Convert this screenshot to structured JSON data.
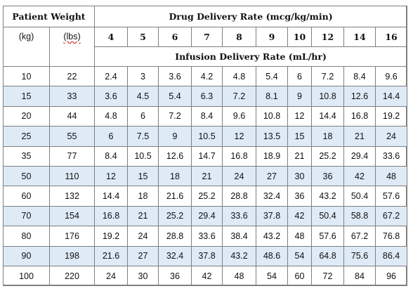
{
  "header": {
    "patient_weight": "Patient Weight",
    "drug_rate": "Drug Delivery Rate (mcg/kg/min)",
    "unit_kg": "(kg)",
    "unit_lbs": "(lbs)",
    "infusion_rate": "Infusion Delivery Rate (mL/hr)",
    "doses": [
      "4",
      "5",
      "6",
      "7",
      "8",
      "9",
      "10",
      "12",
      "14",
      "16"
    ]
  },
  "rows": [
    {
      "kg": "10",
      "lbs": "22",
      "vals": [
        "2.4",
        "3",
        "3.6",
        "4.2",
        "4.8",
        "5.4",
        "6",
        "7.2",
        "8.4",
        "9.6"
      ]
    },
    {
      "kg": "15",
      "lbs": "33",
      "vals": [
        "3.6",
        "4.5",
        "5.4",
        "6.3",
        "7.2",
        "8.1",
        "9",
        "10.8",
        "12.6",
        "14.4"
      ]
    },
    {
      "kg": "20",
      "lbs": "44",
      "vals": [
        "4.8",
        "6",
        "7.2",
        "8.4",
        "9.6",
        "10.8",
        "12",
        "14.4",
        "16.8",
        "19.2"
      ]
    },
    {
      "kg": "25",
      "lbs": "55",
      "vals": [
        "6",
        "7.5",
        "9",
        "10.5",
        "12",
        "13.5",
        "15",
        "18",
        "21",
        "24"
      ]
    },
    {
      "kg": "35",
      "lbs": "77",
      "vals": [
        "8.4",
        "10.5",
        "12.6",
        "14.7",
        "16.8",
        "18.9",
        "21",
        "25.2",
        "29.4",
        "33.6"
      ]
    },
    {
      "kg": "50",
      "lbs": "110",
      "vals": [
        "12",
        "15",
        "18",
        "21",
        "24",
        "27",
        "30",
        "36",
        "42",
        "48"
      ]
    },
    {
      "kg": "60",
      "lbs": "132",
      "vals": [
        "14.4",
        "18",
        "21.6",
        "25.2",
        "28.8",
        "32.4",
        "36",
        "43.2",
        "50.4",
        "57.6"
      ]
    },
    {
      "kg": "70",
      "lbs": "154",
      "vals": [
        "16.8",
        "21",
        "25.2",
        "29.4",
        "33.6",
        "37.8",
        "42",
        "50.4",
        "58.8",
        "67.2"
      ]
    },
    {
      "kg": "80",
      "lbs": "176",
      "vals": [
        "19.2",
        "24",
        "28.8",
        "33.6",
        "38.4",
        "43.2",
        "48",
        "57.6",
        "67.2",
        "76.8"
      ]
    },
    {
      "kg": "90",
      "lbs": "198",
      "vals": [
        "21.6",
        "27",
        "32.4",
        "37.8",
        "43.2",
        "48.6",
        "54",
        "64.8",
        "75.6",
        "86.4"
      ]
    },
    {
      "kg": "100",
      "lbs": "220",
      "vals": [
        "24",
        "30",
        "36",
        "42",
        "48",
        "54",
        "60",
        "72",
        "84",
        "96"
      ]
    }
  ],
  "colors": {
    "shade": "#deeaf6",
    "border": "#7f7f7f",
    "spell_underline": "#d00000"
  }
}
